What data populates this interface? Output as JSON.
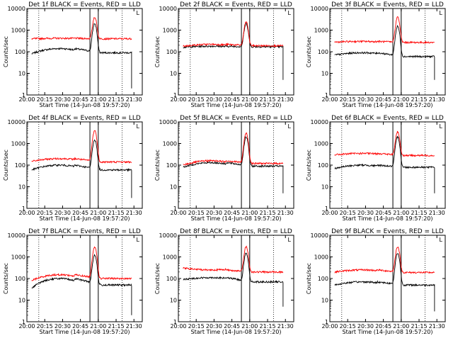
{
  "figure": {
    "colors": {
      "background": "#ffffff",
      "events": "#000000",
      "lld": "#ff0000",
      "axis": "#000000"
    },
    "shared": {
      "xlabel": "Start Time (14-Jun-08 19:57:20)",
      "ylabel": "Counts/sec",
      "x_tick_labels": [
        "20:00",
        "20:15",
        "20:30",
        "20:45",
        "21:00",
        "21:15",
        "21:30"
      ],
      "x_tick_minutes": [
        0,
        15,
        30,
        45,
        60,
        75,
        90
      ],
      "x_range_minutes": [
        0,
        97
      ],
      "y_tick_labels": [
        "1",
        "10",
        "100",
        "1000",
        "10000"
      ],
      "y_tick_values": [
        1,
        10,
        100,
        1000,
        10000
      ],
      "ylim": [
        1,
        10000
      ],
      "yscale": "log",
      "dotted_markers_minutes": [
        10,
        80
      ],
      "solid_markers_minutes": [
        53,
        60
      ],
      "flare_peak_minute": 57
    }
  },
  "chart_data": [
    {
      "type": "line",
      "title": "Det 1f BLACK = Events, RED = LLD",
      "corner_label": "L",
      "series": [
        {
          "name": "Events (BLACK)",
          "color": "#000000",
          "baseline_start": 80,
          "baseline_bump": 140,
          "baseline_end": 90,
          "peak": 2000,
          "drop_to": 2
        },
        {
          "name": "LLD (RED)",
          "color": "#ff0000",
          "baseline_start": 400,
          "baseline_bump": 420,
          "baseline_end": 400,
          "peak": 4000
        }
      ]
    },
    {
      "type": "line",
      "title": "Det 2f BLACK = Events, RED = LLD",
      "corner_label": "L",
      "series": [
        {
          "name": "Events (BLACK)",
          "color": "#000000",
          "baseline_start": 160,
          "baseline_bump": 180,
          "baseline_end": 170,
          "peak": 2000,
          "drop_to": 5
        },
        {
          "name": "LLD (RED)",
          "color": "#ff0000",
          "baseline_start": 180,
          "baseline_bump": 220,
          "baseline_end": 190,
          "peak": 2400
        }
      ]
    },
    {
      "type": "line",
      "title": "Det 3f BLACK = Events, RED = LLD",
      "corner_label": "L",
      "series": [
        {
          "name": "Events (BLACK)",
          "color": "#000000",
          "baseline_start": 70,
          "baseline_bump": 90,
          "baseline_end": 60,
          "peak": 1500,
          "drop_to": 5
        },
        {
          "name": "LLD (RED)",
          "color": "#ff0000",
          "baseline_start": 280,
          "baseline_bump": 300,
          "baseline_end": 270,
          "peak": 4000
        }
      ]
    },
    {
      "type": "line",
      "title": "Det 4f BLACK = Events, RED = LLD",
      "corner_label": "L",
      "series": [
        {
          "name": "Events (BLACK)",
          "color": "#000000",
          "baseline_start": 60,
          "baseline_bump": 100,
          "baseline_end": 60,
          "peak": 1500,
          "drop_to": 3
        },
        {
          "name": "LLD (RED)",
          "color": "#ff0000",
          "baseline_start": 150,
          "baseline_bump": 200,
          "baseline_end": 140,
          "peak": 4000
        }
      ]
    },
    {
      "type": "line",
      "title": "Det 5f BLACK = Events, RED = LLD",
      "corner_label": "L",
      "series": [
        {
          "name": "Events (BLACK)",
          "color": "#000000",
          "baseline_start": 80,
          "baseline_bump": 130,
          "baseline_end": 90,
          "peak": 2000,
          "drop_to": 5
        },
        {
          "name": "LLD (RED)",
          "color": "#ff0000",
          "baseline_start": 100,
          "baseline_bump": 160,
          "baseline_end": 120,
          "peak": 3000
        }
      ]
    },
    {
      "type": "line",
      "title": "Det 6f BLACK = Events, RED = LLD",
      "corner_label": "L",
      "series": [
        {
          "name": "Events (BLACK)",
          "color": "#000000",
          "baseline_start": 70,
          "baseline_bump": 100,
          "baseline_end": 80,
          "peak": 2000,
          "drop_to": 5
        },
        {
          "name": "LLD (RED)",
          "color": "#ff0000",
          "baseline_start": 300,
          "baseline_bump": 350,
          "baseline_end": 280,
          "peak": 3500
        }
      ]
    },
    {
      "type": "line",
      "title": "Det 7f BLACK = Events, RED = LLD",
      "corner_label": "L",
      "series": [
        {
          "name": "Events (BLACK)",
          "color": "#000000",
          "baseline_start": 35,
          "baseline_bump": 100,
          "baseline_end": 50,
          "peak": 1200,
          "drop_to": 2
        },
        {
          "name": "LLD (RED)",
          "color": "#ff0000",
          "baseline_start": 80,
          "baseline_bump": 150,
          "baseline_end": 100,
          "peak": 3000
        }
      ]
    },
    {
      "type": "line",
      "title": "Det 8f BLACK = Events, RED = LLD",
      "corner_label": "L",
      "series": [
        {
          "name": "Events (BLACK)",
          "color": "#000000",
          "baseline_start": 90,
          "baseline_bump": 110,
          "baseline_end": 70,
          "peak": 1500,
          "drop_to": 5
        },
        {
          "name": "LLD (RED)",
          "color": "#ff0000",
          "baseline_start": 300,
          "baseline_bump": 250,
          "baseline_end": 200,
          "peak": 3000
        }
      ]
    },
    {
      "type": "line",
      "title": "Det 9f BLACK = Events, RED = LLD",
      "corner_label": "L",
      "series": [
        {
          "name": "Events (BLACK)",
          "color": "#000000",
          "baseline_start": 50,
          "baseline_bump": 70,
          "baseline_end": 50,
          "peak": 1500,
          "drop_to": 3
        },
        {
          "name": "LLD (RED)",
          "color": "#ff0000",
          "baseline_start": 200,
          "baseline_bump": 250,
          "baseline_end": 190,
          "peak": 3000
        }
      ]
    }
  ]
}
